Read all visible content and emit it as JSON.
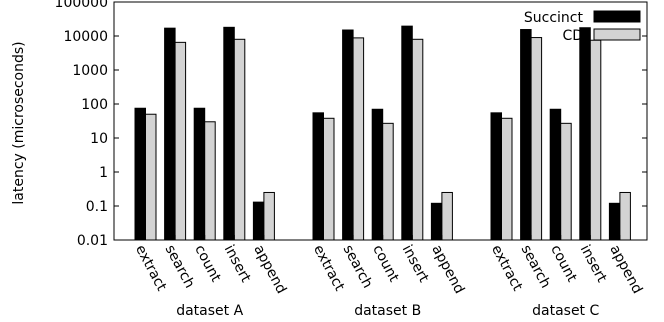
{
  "chart_data": {
    "type": "bar",
    "ylabel": "latency (microseconds)",
    "yscale": "log",
    "ylim": [
      0.01,
      100000
    ],
    "yticks": [
      {
        "value": 0.01,
        "label": "0.01"
      },
      {
        "value": 0.1,
        "label": "0.1"
      },
      {
        "value": 1,
        "label": "1"
      },
      {
        "value": 10,
        "label": "10"
      },
      {
        "value": 100,
        "label": "100"
      },
      {
        "value": 1000,
        "label": "1000"
      },
      {
        "value": 10000,
        "label": "10000"
      },
      {
        "value": 100000,
        "label": "100000"
      }
    ],
    "grid": false,
    "legend_position": "top-right",
    "operations": [
      "extract",
      "search",
      "count",
      "insert",
      "append"
    ],
    "groups": [
      "dataset A",
      "dataset B",
      "dataset C"
    ],
    "series": [
      {
        "name": "Succinct",
        "color": "#000000",
        "values": [
          [
            75,
            17000,
            75,
            18000,
            0.13
          ],
          [
            55,
            15000,
            70,
            19500,
            0.12
          ],
          [
            55,
            15500,
            70,
            17500,
            0.12
          ]
        ]
      },
      {
        "name": "CD",
        "color": "#d3d3d3",
        "values": [
          [
            50,
            6500,
            30,
            8000,
            0.25
          ],
          [
            38,
            8800,
            27,
            8000,
            0.25
          ],
          [
            38,
            9000,
            27,
            7500,
            0.25
          ]
        ]
      }
    ]
  }
}
